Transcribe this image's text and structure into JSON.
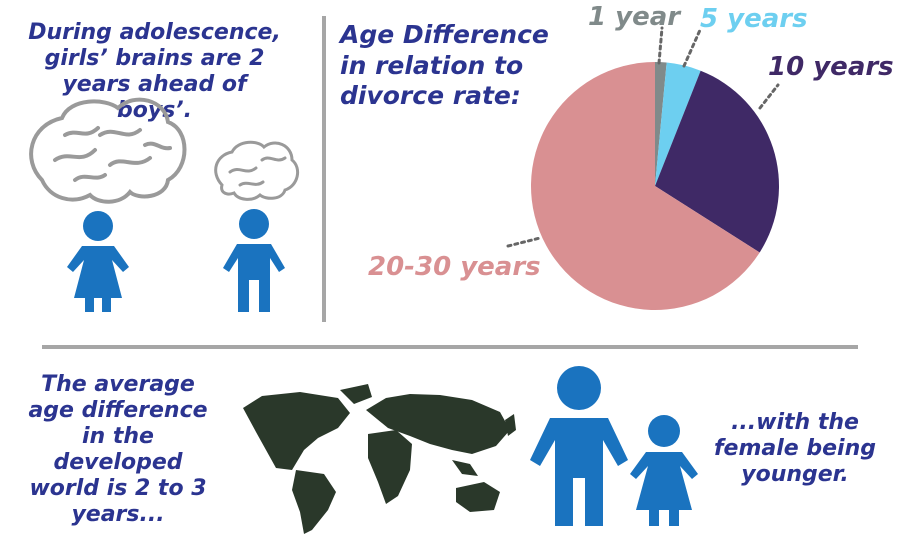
{
  "texts": {
    "brain_fact": "During adolescence, girls’ brains are 2 years ahead of boys’.",
    "average_fact": "The average age difference in the developed world is 2 to 3 years...",
    "female_fact": "...with the female being younger."
  },
  "icons": [
    "brain-outline-icon",
    "girl-figure-icon",
    "boy-figure-icon",
    "world-map-icon",
    "man-figure-icon"
  ],
  "chart_data": {
    "type": "pie",
    "title": "Age Difference in relation to divorce rate:",
    "categories": [
      "1 year",
      "5 years",
      "10 years",
      "20-30 years"
    ],
    "values": [
      1.5,
      4.5,
      28,
      66
    ],
    "colors": [
      "#808a8a",
      "#6dcff0",
      "#3f2966",
      "#d99092"
    ],
    "label_colors": [
      "#808a8a",
      "#6dcff0",
      "#3f2966",
      "#d99092"
    ],
    "legend": "none",
    "start_angle_deg": 0
  }
}
